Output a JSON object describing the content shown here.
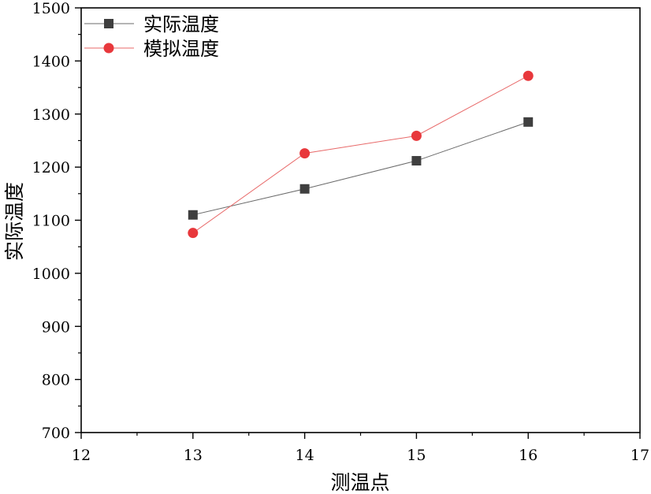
{
  "chart_data": {
    "type": "line",
    "xlabel": "测温点",
    "ylabel": "实际温度",
    "xlim": [
      12,
      17
    ],
    "ylim": [
      700,
      1500
    ],
    "x_ticks": [
      12,
      13,
      14,
      15,
      16,
      17
    ],
    "y_ticks": [
      700,
      800,
      900,
      1000,
      1100,
      1200,
      1300,
      1400,
      1500
    ],
    "grid": false,
    "legend_position": "top-left",
    "series": [
      {
        "name": "实际温度",
        "marker": "square",
        "line_color": "#6b6b6b",
        "marker_color": "#3f3f3f",
        "x": [
          13,
          14,
          15,
          16
        ],
        "y": [
          1110,
          1159,
          1212,
          1285
        ]
      },
      {
        "name": "模拟温度",
        "marker": "circle",
        "line_color": "#e86a6a",
        "marker_color": "#e8383c",
        "x": [
          13,
          14,
          15,
          16
        ],
        "y": [
          1076,
          1226,
          1259,
          1372
        ]
      }
    ]
  }
}
